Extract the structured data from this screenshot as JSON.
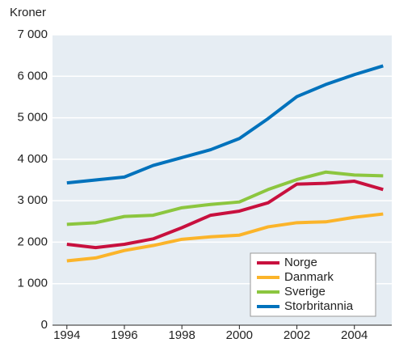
{
  "chart_data": {
    "type": "line",
    "y_label": "Kroner",
    "x": [
      1994,
      1995,
      1996,
      1997,
      1998,
      1999,
      2000,
      2001,
      2002,
      2003,
      2004,
      2005
    ],
    "series": [
      {
        "name": "Norge",
        "color": "#c8103e",
        "values": [
          1950,
          1870,
          1950,
          2080,
          2350,
          2650,
          2750,
          2950,
          3400,
          3420,
          3470,
          3270
        ]
      },
      {
        "name": "Danmark",
        "color": "#fbb42a",
        "values": [
          1550,
          1620,
          1800,
          1920,
          2070,
          2130,
          2170,
          2370,
          2470,
          2490,
          2600,
          2680
        ]
      },
      {
        "name": "Sverige",
        "color": "#8cc63f",
        "values": [
          2430,
          2470,
          2620,
          2650,
          2830,
          2910,
          2970,
          3270,
          3510,
          3690,
          3620,
          3600
        ]
      },
      {
        "name": "Storbritannia",
        "color": "#0072bc",
        "values": [
          3430,
          3500,
          3570,
          3850,
          4040,
          4230,
          4500,
          4980,
          5510,
          5800,
          6040,
          6250
        ]
      }
    ],
    "xlim": [
      1993.5,
      2005.3
    ],
    "xticks": [
      1994,
      1996,
      1998,
      2000,
      2002,
      2004
    ],
    "ylim": [
      0,
      7000
    ],
    "yticks": [
      0,
      {
        "value": 1000,
        "label": "1 000"
      },
      {
        "value": 2000,
        "label": "2 000"
      },
      {
        "value": 3000,
        "label": "3 000"
      },
      {
        "value": 4000,
        "label": "4 000"
      },
      {
        "value": 5000,
        "label": "5 000"
      },
      {
        "value": 6000,
        "label": "6 000"
      },
      {
        "value": 7000,
        "label": "7 000"
      }
    ],
    "grid": true,
    "legend": "lower right"
  }
}
